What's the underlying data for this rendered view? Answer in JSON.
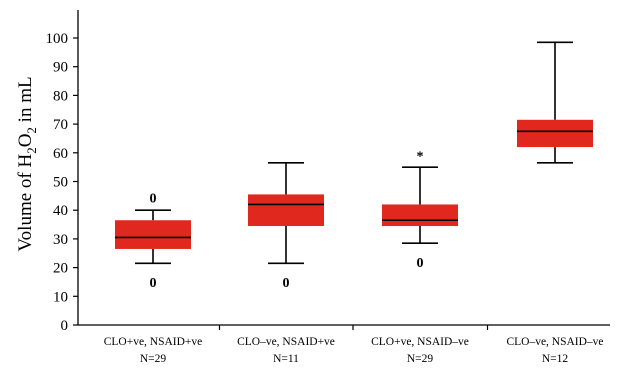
{
  "chart_data": {
    "type": "box",
    "title": "",
    "xlabel": "",
    "ylabel": {
      "prefix": "Volume of H",
      "sub1": "2",
      "mid": "O",
      "sub2": "2",
      "suffix": " in mL"
    },
    "ylim": [
      0,
      110
    ],
    "yticks": [
      0,
      10,
      20,
      30,
      40,
      50,
      60,
      70,
      80,
      90,
      100
    ],
    "grid": false,
    "box_color": "#e0281e",
    "categories": [
      {
        "label": "CLO+ve, NSAID+ve",
        "n": "N=29"
      },
      {
        "label": "CLO–ve, NSAID+ve",
        "n": "N=11"
      },
      {
        "label": "CLO+ve, NSAID–ve",
        "n": "N=29"
      },
      {
        "label": "CLO–ve, NSAID–ve",
        "n": "N=12"
      }
    ],
    "boxes": [
      {
        "min": 21.5,
        "q1": 26.5,
        "median": 30.5,
        "q3": 36.5,
        "max": 40
      },
      {
        "min": 21.5,
        "q1": 34.5,
        "median": 42,
        "q3": 45.5,
        "max": 56.5
      },
      {
        "min": 28.5,
        "q1": 34.5,
        "median": 36.5,
        "q3": 42,
        "max": 55
      },
      {
        "min": 56.5,
        "q1": 62,
        "median": 67.5,
        "q3": 71.5,
        "max": 98.5
      }
    ],
    "annotations": [
      {
        "box": 0,
        "text": "0",
        "y": 44.5
      },
      {
        "box": 0,
        "text": "0",
        "y": 15
      },
      {
        "box": 1,
        "text": "0",
        "y": 15
      },
      {
        "box": 2,
        "text": "*",
        "y": 59
      },
      {
        "box": 2,
        "text": "0",
        "y": 22
      }
    ]
  }
}
